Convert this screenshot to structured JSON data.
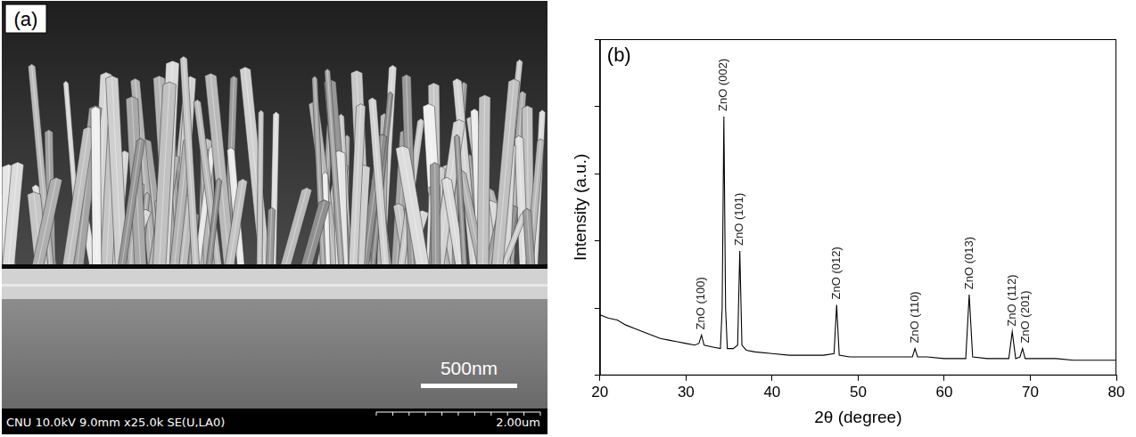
{
  "panel_a": {
    "label": "(a)",
    "scale_bar": "500nm",
    "info_bar": {
      "left": "CNU 10.0kV 9.0mm x25.0k SE(U,LA0)",
      "right": "2.00um"
    }
  },
  "chart_data": {
    "type": "line",
    "panel_label": "(b)",
    "x_label": "2θ (degree)",
    "y_label": "Intensity (a.u.)",
    "x": [
      20,
      21,
      22,
      23,
      24,
      25,
      26,
      27,
      28,
      29,
      30,
      31,
      31.5,
      31.8,
      32.1,
      33,
      34.0,
      34.2,
      34.4,
      34.6,
      34.8,
      35.5,
      36.0,
      36.25,
      36.5,
      37,
      38,
      40,
      42,
      44,
      46,
      47.2,
      47.5,
      47.8,
      49,
      52,
      55,
      56.3,
      56.6,
      56.9,
      58,
      60,
      62.5,
      62.9,
      63.3,
      65,
      67.5,
      67.9,
      68.3,
      68.8,
      69.1,
      69.4,
      71,
      73,
      75,
      77,
      80
    ],
    "values": [
      18,
      17,
      16.5,
      15,
      14,
      13,
      12,
      11,
      10.5,
      10,
      9.5,
      9,
      9.5,
      12,
      9,
      8.5,
      8,
      20,
      77,
      20,
      8,
      8,
      9,
      37,
      9,
      7.5,
      7,
      6.5,
      6,
      6,
      6,
      6.5,
      21,
      6,
      5.5,
      5.5,
      5.5,
      5.5,
      8,
      5.5,
      5.5,
      5,
      5,
      24,
      5.5,
      5,
      5,
      13,
      5,
      5.5,
      8,
      5,
      5,
      5,
      4.5,
      4.5,
      4.5
    ],
    "color": "#000000",
    "xlim": [
      20,
      80
    ],
    "xticks": [
      20,
      30,
      40,
      50,
      60,
      70,
      80
    ],
    "ylim": [
      0,
      100
    ],
    "yticks": [
      0,
      20,
      40,
      60,
      80,
      100
    ],
    "tick_labels": "x",
    "grid": false,
    "annotations": [
      {
        "text": "ZnO (100)",
        "x": 31.8
      },
      {
        "text": "ZnO (002)",
        "x": 34.4
      },
      {
        "text": "ZnO (101)",
        "x": 36.25
      },
      {
        "text": "ZnO (012)",
        "x": 47.5
      },
      {
        "text": "ZnO (110)",
        "x": 56.6
      },
      {
        "text": "ZnO (013)",
        "x": 62.9
      },
      {
        "text": "ZnO (112)",
        "x": 67.9
      },
      {
        "text": "ZnO (201)",
        "x": 69.1
      }
    ]
  }
}
